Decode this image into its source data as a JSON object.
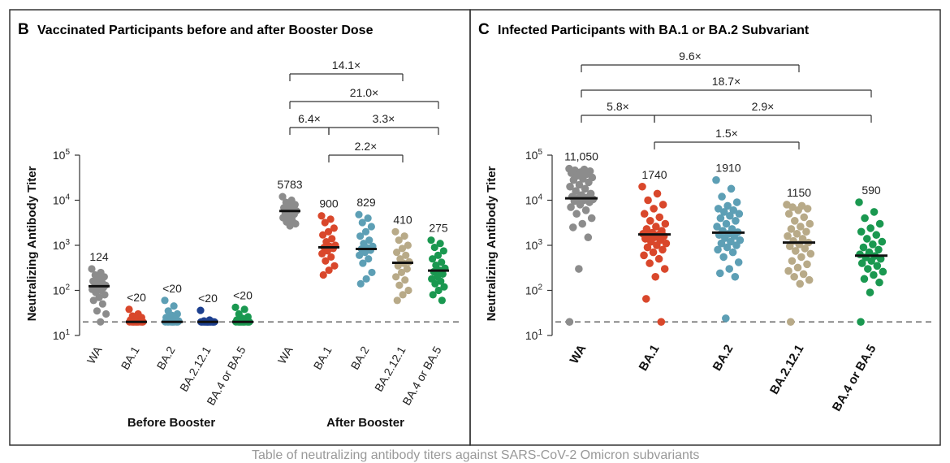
{
  "figure": {
    "footer_text": "Table of neutralizing antibody titers against SARS-CoV-2 Omicron subvariants"
  },
  "colors": {
    "WA": "#8c8c8c",
    "BA.1": "#d9472b",
    "BA.2": "#5d9fb5",
    "BA.2.12.1": "#b8aa88",
    "BA.2.12.1_blue": "#1c3f8f",
    "BA.4 or BA.5": "#1a9850",
    "median": "#111111",
    "dashed": "#555555",
    "frame": "#333333"
  },
  "chart_data": [
    {
      "type": "scatter",
      "panel": "B",
      "title": "Vaccinated Participants before and after Booster Dose",
      "ylabel": "Neutralizing Antibody Titer",
      "yscale": "log",
      "ylim": [
        10,
        100000
      ],
      "yticks": [
        {
          "base": "10",
          "exp": "1",
          "value": 10
        },
        {
          "base": "10",
          "exp": "2",
          "value": 100
        },
        {
          "base": "10",
          "exp": "3",
          "value": 1000
        },
        {
          "base": "10",
          "exp": "4",
          "value": 10000
        },
        {
          "base": "10",
          "exp": "5",
          "value": 100000
        }
      ],
      "limit_of_detection": 20,
      "groups": [
        {
          "name": "Before Booster",
          "categories": [
            "WA",
            "BA.1",
            "BA.2",
            "BA.2.12.1",
            "BA.4 or BA.5"
          ]
        },
        {
          "name": "After Booster",
          "categories": [
            "WA",
            "BA.1",
            "BA.2",
            "BA.2.12.1",
            "BA.4 or BA.5"
          ]
        }
      ],
      "series": [
        {
          "group": "Before Booster",
          "category": "WA",
          "color_key": "WA",
          "median": 124,
          "label": "124",
          "points": [
            300,
            250,
            220,
            200,
            180,
            160,
            150,
            140,
            130,
            125,
            120,
            115,
            110,
            105,
            100,
            90,
            80,
            70,
            60,
            50,
            35,
            30,
            20
          ]
        },
        {
          "group": "Before Booster",
          "category": "BA.1",
          "color_key": "BA.1",
          "median": 20,
          "label": "<20",
          "points": [
            38,
            30,
            27,
            25,
            23,
            22,
            21,
            20,
            20,
            20,
            20,
            20,
            20,
            20,
            20,
            20,
            20,
            20
          ]
        },
        {
          "group": "Before Booster",
          "category": "BA.2",
          "color_key": "BA.2",
          "median": 20,
          "label": "<20",
          "points": [
            60,
            45,
            35,
            30,
            28,
            25,
            23,
            22,
            21,
            20,
            20,
            20,
            20,
            20,
            20,
            20,
            20,
            20
          ]
        },
        {
          "group": "Before Booster",
          "category": "BA.2.12.1",
          "color_key": "BA.2.12.1_blue",
          "median": 20,
          "label": "<20",
          "points": [
            36,
            22,
            21,
            20,
            20,
            20,
            20,
            20,
            20,
            20,
            20,
            20,
            20,
            20,
            20,
            20,
            20,
            20
          ]
        },
        {
          "group": "Before Booster",
          "category": "BA.4 or BA.5",
          "color_key": "BA.4 or BA.5",
          "median": 20,
          "label": "<20",
          "points": [
            42,
            38,
            30,
            26,
            24,
            22,
            21,
            20,
            20,
            20,
            20,
            20,
            20,
            20,
            20,
            20,
            20,
            20
          ]
        },
        {
          "group": "After Booster",
          "category": "WA",
          "color_key": "WA",
          "median": 5783,
          "label": "5783",
          "points": [
            12000,
            10000,
            9000,
            8000,
            7200,
            6800,
            6300,
            6000,
            5800,
            5500,
            5200,
            4900,
            4500,
            4100,
            3700,
            3300,
            3000,
            2700
          ]
        },
        {
          "group": "After Booster",
          "category": "BA.1",
          "color_key": "BA.1",
          "median": 900,
          "label": "900",
          "points": [
            4500,
            3800,
            3200,
            2400,
            2000,
            1700,
            1400,
            1200,
            1000,
            950,
            900,
            850,
            750,
            650,
            550,
            450,
            350,
            280,
            220
          ]
        },
        {
          "group": "After Booster",
          "category": "BA.2",
          "color_key": "BA.2",
          "median": 829,
          "label": "829",
          "points": [
            4800,
            4000,
            3200,
            2600,
            2000,
            1600,
            1300,
            1100,
            950,
            880,
            830,
            780,
            700,
            600,
            500,
            400,
            250,
            180,
            140
          ]
        },
        {
          "group": "After Booster",
          "category": "BA.2.12.1",
          "color_key": "BA.2.12.1",
          "median": 410,
          "label": "410",
          "points": [
            2000,
            1600,
            1300,
            1000,
            850,
            700,
            600,
            500,
            430,
            400,
            350,
            300,
            250,
            200,
            170,
            130,
            100,
            80,
            60
          ]
        },
        {
          "group": "After Booster",
          "category": "BA.4 or BA.5",
          "color_key": "BA.4 or BA.5",
          "median": 275,
          "label": "275",
          "points": [
            1300,
            1100,
            900,
            750,
            600,
            500,
            420,
            360,
            310,
            280,
            260,
            230,
            200,
            180,
            160,
            140,
            120,
            100,
            80,
            60
          ]
        }
      ],
      "comparisons": [
        {
          "from": [
            1,
            0
          ],
          "to": [
            1,
            3
          ],
          "label": "14.1×"
        },
        {
          "from": [
            1,
            0
          ],
          "to": [
            1,
            4
          ],
          "label": "21.0×"
        },
        {
          "from": [
            1,
            0
          ],
          "to": [
            1,
            1
          ],
          "label": "6.4×"
        },
        {
          "from": [
            1,
            1
          ],
          "to": [
            1,
            4
          ],
          "label": "3.3×"
        },
        {
          "from": [
            1,
            1
          ],
          "to": [
            1,
            3
          ],
          "label": "2.2×"
        }
      ]
    },
    {
      "type": "scatter",
      "panel": "C",
      "title": "Infected Participants with BA.1 or BA.2 Subvariant",
      "ylabel": "Neutralizing Antibody Titer",
      "yscale": "log",
      "ylim": [
        10,
        100000
      ],
      "yticks": [
        {
          "base": "10",
          "exp": "1",
          "value": 10
        },
        {
          "base": "10",
          "exp": "2",
          "value": 100
        },
        {
          "base": "10",
          "exp": "3",
          "value": 1000
        },
        {
          "base": "10",
          "exp": "4",
          "value": 10000
        },
        {
          "base": "10",
          "exp": "5",
          "value": 100000
        }
      ],
      "limit_of_detection": 20,
      "categories": [
        "WA",
        "BA.1",
        "BA.2",
        "BA.2.12.1",
        "BA.4 or BA.5"
      ],
      "series": [
        {
          "category": "WA",
          "color_key": "WA",
          "median": 11050,
          "label": "11,050",
          "points": [
            50000,
            48000,
            46000,
            44000,
            42000,
            40000,
            38000,
            35000,
            32000,
            30000,
            28000,
            25000,
            22000,
            20000,
            18000,
            16000,
            14000,
            13000,
            12000,
            11500,
            11000,
            10500,
            10000,
            9500,
            9000,
            8000,
            7000,
            6000,
            5000,
            4000,
            3000,
            2500,
            1500,
            300,
            20
          ]
        },
        {
          "category": "BA.1",
          "color_key": "BA.1",
          "median": 1740,
          "label": "1740",
          "points": [
            20000,
            14000,
            10000,
            8000,
            6500,
            5000,
            4200,
            3500,
            3000,
            2600,
            2300,
            2100,
            1900,
            1800,
            1700,
            1650,
            1600,
            1500,
            1400,
            1300,
            1200,
            1100,
            1000,
            900,
            800,
            700,
            600,
            500,
            400,
            300,
            200,
            65,
            20
          ]
        },
        {
          "category": "BA.2",
          "color_key": "BA.2",
          "median": 1910,
          "label": "1910",
          "points": [
            28000,
            18000,
            12000,
            9000,
            7500,
            6500,
            6000,
            5500,
            5000,
            4500,
            4000,
            3500,
            3000,
            2600,
            2300,
            2100,
            1950,
            1800,
            1700,
            1600,
            1450,
            1300,
            1200,
            1100,
            1000,
            900,
            800,
            700,
            550,
            420,
            300,
            240,
            200,
            24
          ]
        },
        {
          "category": "BA.2.12.1",
          "color_key": "BA.2.12.1",
          "median": 1150,
          "label": "1150",
          "points": [
            8000,
            7500,
            7000,
            6500,
            6000,
            5000,
            4200,
            3500,
            3000,
            2600,
            2300,
            2000,
            1800,
            1600,
            1400,
            1250,
            1150,
            1050,
            950,
            850,
            750,
            650,
            550,
            450,
            380,
            320,
            270,
            230,
            200,
            170,
            140,
            20
          ]
        },
        {
          "category": "BA.4 or BA.5",
          "color_key": "BA.4 or BA.5",
          "median": 590,
          "label": "590",
          "points": [
            9000,
            5500,
            4000,
            3000,
            2400,
            2000,
            1700,
            1400,
            1200,
            1050,
            900,
            800,
            700,
            630,
            580,
            540,
            500,
            450,
            400,
            350,
            300,
            260,
            220,
            180,
            150,
            90,
            20
          ]
        }
      ],
      "comparisons": [
        {
          "from": 0,
          "to": 3,
          "label": "9.6×"
        },
        {
          "from": 0,
          "to": 4,
          "label": "18.7×"
        },
        {
          "from": 0,
          "to": 1,
          "label": "5.8×"
        },
        {
          "from": 1,
          "to": 4,
          "label": "2.9×"
        },
        {
          "from": 1,
          "to": 3,
          "label": "1.5×"
        }
      ]
    }
  ]
}
